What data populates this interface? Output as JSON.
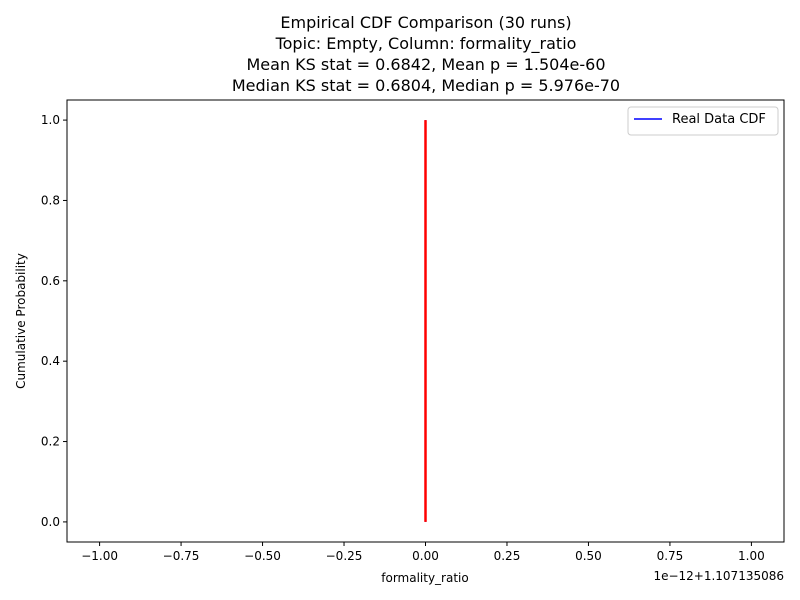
{
  "chart_data": {
    "type": "line",
    "title_lines": [
      "Empirical CDF Comparison (30 runs)",
      "Topic: Empty, Column: formality_ratio",
      "Mean KS stat = 0.6842, Mean p = 1.504e-60",
      "Median KS stat = 0.6804, Median p = 5.976e-70"
    ],
    "xlabel": "formality_ratio",
    "ylabel": "Cumulative Probability",
    "x_offset_label": "1e−12+1.107135086",
    "xlim": [
      -1.1,
      1.1
    ],
    "ylim": [
      -0.05,
      1.05
    ],
    "x_ticks": [
      -1.0,
      -0.75,
      -0.5,
      -0.25,
      0.0,
      0.25,
      0.5,
      0.75,
      1.0
    ],
    "x_tick_labels": [
      "−1.00",
      "−0.75",
      "−0.50",
      "−0.25",
      "0.00",
      "0.25",
      "0.50",
      "0.75",
      "1.00"
    ],
    "y_ticks": [
      0.0,
      0.2,
      0.4,
      0.6,
      0.8,
      1.0
    ],
    "y_tick_labels": [
      "0.0",
      "0.2",
      "0.4",
      "0.6",
      "0.8",
      "1.0"
    ],
    "grid": false,
    "legend": {
      "placement": "top-right",
      "entries": [
        {
          "label": "Real Data CDF",
          "color": "#0000ff"
        }
      ]
    },
    "series": [
      {
        "name": "Real Data CDF",
        "color": "#0000ff",
        "x": [
          0.0,
          0.0
        ],
        "y": [
          0.0,
          1.0
        ]
      },
      {
        "color": "#ff0000",
        "x": [
          0.0,
          0.0
        ],
        "y": [
          0.0,
          1.0
        ]
      }
    ]
  }
}
